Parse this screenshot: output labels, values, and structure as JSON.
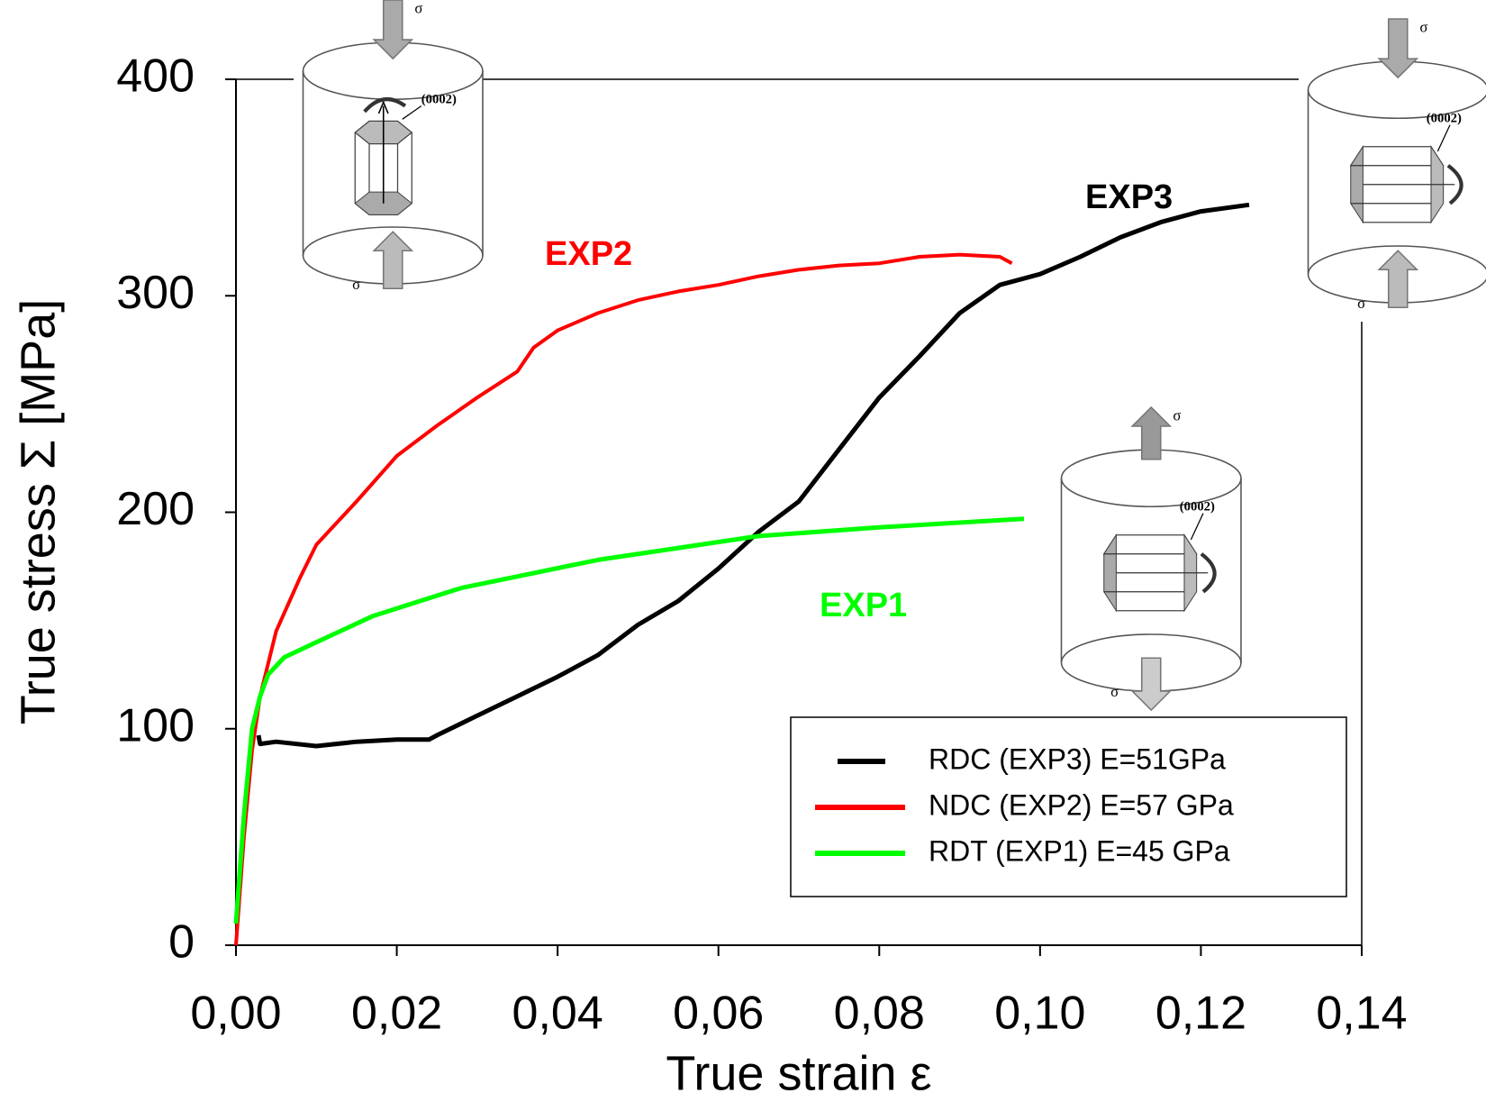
{
  "chart_data": {
    "type": "line",
    "xlabel": "True strain ε",
    "ylabel": "True stress Σ [MPa]",
    "xlim": [
      0,
      0.14
    ],
    "ylim": [
      0,
      400
    ],
    "xticks": [
      {
        "value": 0,
        "label": "0,00"
      },
      {
        "value": 0.02,
        "label": "0,02"
      },
      {
        "value": 0.04,
        "label": "0,04"
      },
      {
        "value": 0.06,
        "label": "0,06"
      },
      {
        "value": 0.08,
        "label": "0,08"
      },
      {
        "value": 0.1,
        "label": "0,10"
      },
      {
        "value": 0.12,
        "label": "0,12"
      },
      {
        "value": 0.14,
        "label": "0,14"
      }
    ],
    "yticks": [
      0,
      100,
      200,
      300,
      400
    ],
    "legend": "lower right",
    "series": [
      {
        "name": "RDC (EXP3) E=51GPa",
        "color": "#000000",
        "x": [
          0.0028,
          0.003,
          0.005,
          0.01,
          0.015,
          0.02,
          0.024,
          0.025,
          0.03,
          0.035,
          0.04,
          0.045,
          0.05,
          0.055,
          0.06,
          0.065,
          0.07,
          0.075,
          0.08,
          0.085,
          0.09,
          0.095,
          0.1,
          0.105,
          0.11,
          0.115,
          0.12,
          0.126
        ],
        "values": [
          97,
          93,
          94,
          92,
          94,
          95,
          95,
          97,
          106,
          115,
          124,
          134,
          148,
          159,
          174,
          191,
          205,
          229,
          253,
          272,
          292,
          305,
          310,
          318,
          327,
          334,
          339,
          342
        ]
      },
      {
        "name": "NDC (EXP2) E=57 GPa",
        "color": "#ff0000",
        "x": [
          0,
          0.001,
          0.002,
          0.003,
          0.005,
          0.008,
          0.01,
          0.015,
          0.02,
          0.025,
          0.03,
          0.035,
          0.037,
          0.04,
          0.045,
          0.05,
          0.055,
          0.06,
          0.065,
          0.07,
          0.075,
          0.08,
          0.085,
          0.09,
          0.095,
          0.0965
        ],
        "values": [
          0,
          50,
          90,
          115,
          145,
          170,
          185,
          205,
          226,
          240,
          253,
          265,
          276,
          284,
          292,
          298,
          302,
          305,
          309,
          312,
          314,
          315,
          318,
          319,
          318,
          315
        ]
      },
      {
        "name": "RDT (EXP1) E=45 GPa",
        "color": "#00ff00",
        "x": [
          0,
          0.001,
          0.002,
          0.003,
          0.004,
          0.006,
          0.01,
          0.017,
          0.028,
          0.045,
          0.065,
          0.08,
          0.098
        ],
        "values": [
          10,
          60,
          100,
          115,
          125,
          133,
          140,
          152,
          165,
          178,
          189,
          193,
          197
        ]
      }
    ],
    "annotations": [
      {
        "text": "EXP3",
        "color": "#000000"
      },
      {
        "text": "EXP2",
        "color": "#ff0000"
      },
      {
        "text": "EXP1",
        "color": "#00ff00"
      }
    ],
    "insets": [
      {
        "top": "σ",
        "bottom": "σ",
        "plane": "(0002)"
      },
      {
        "top": "σ",
        "bottom": "σ",
        "plane": "(0002)"
      },
      {
        "top": "σ",
        "bottom": "σ",
        "plane": "(0002)"
      }
    ]
  }
}
